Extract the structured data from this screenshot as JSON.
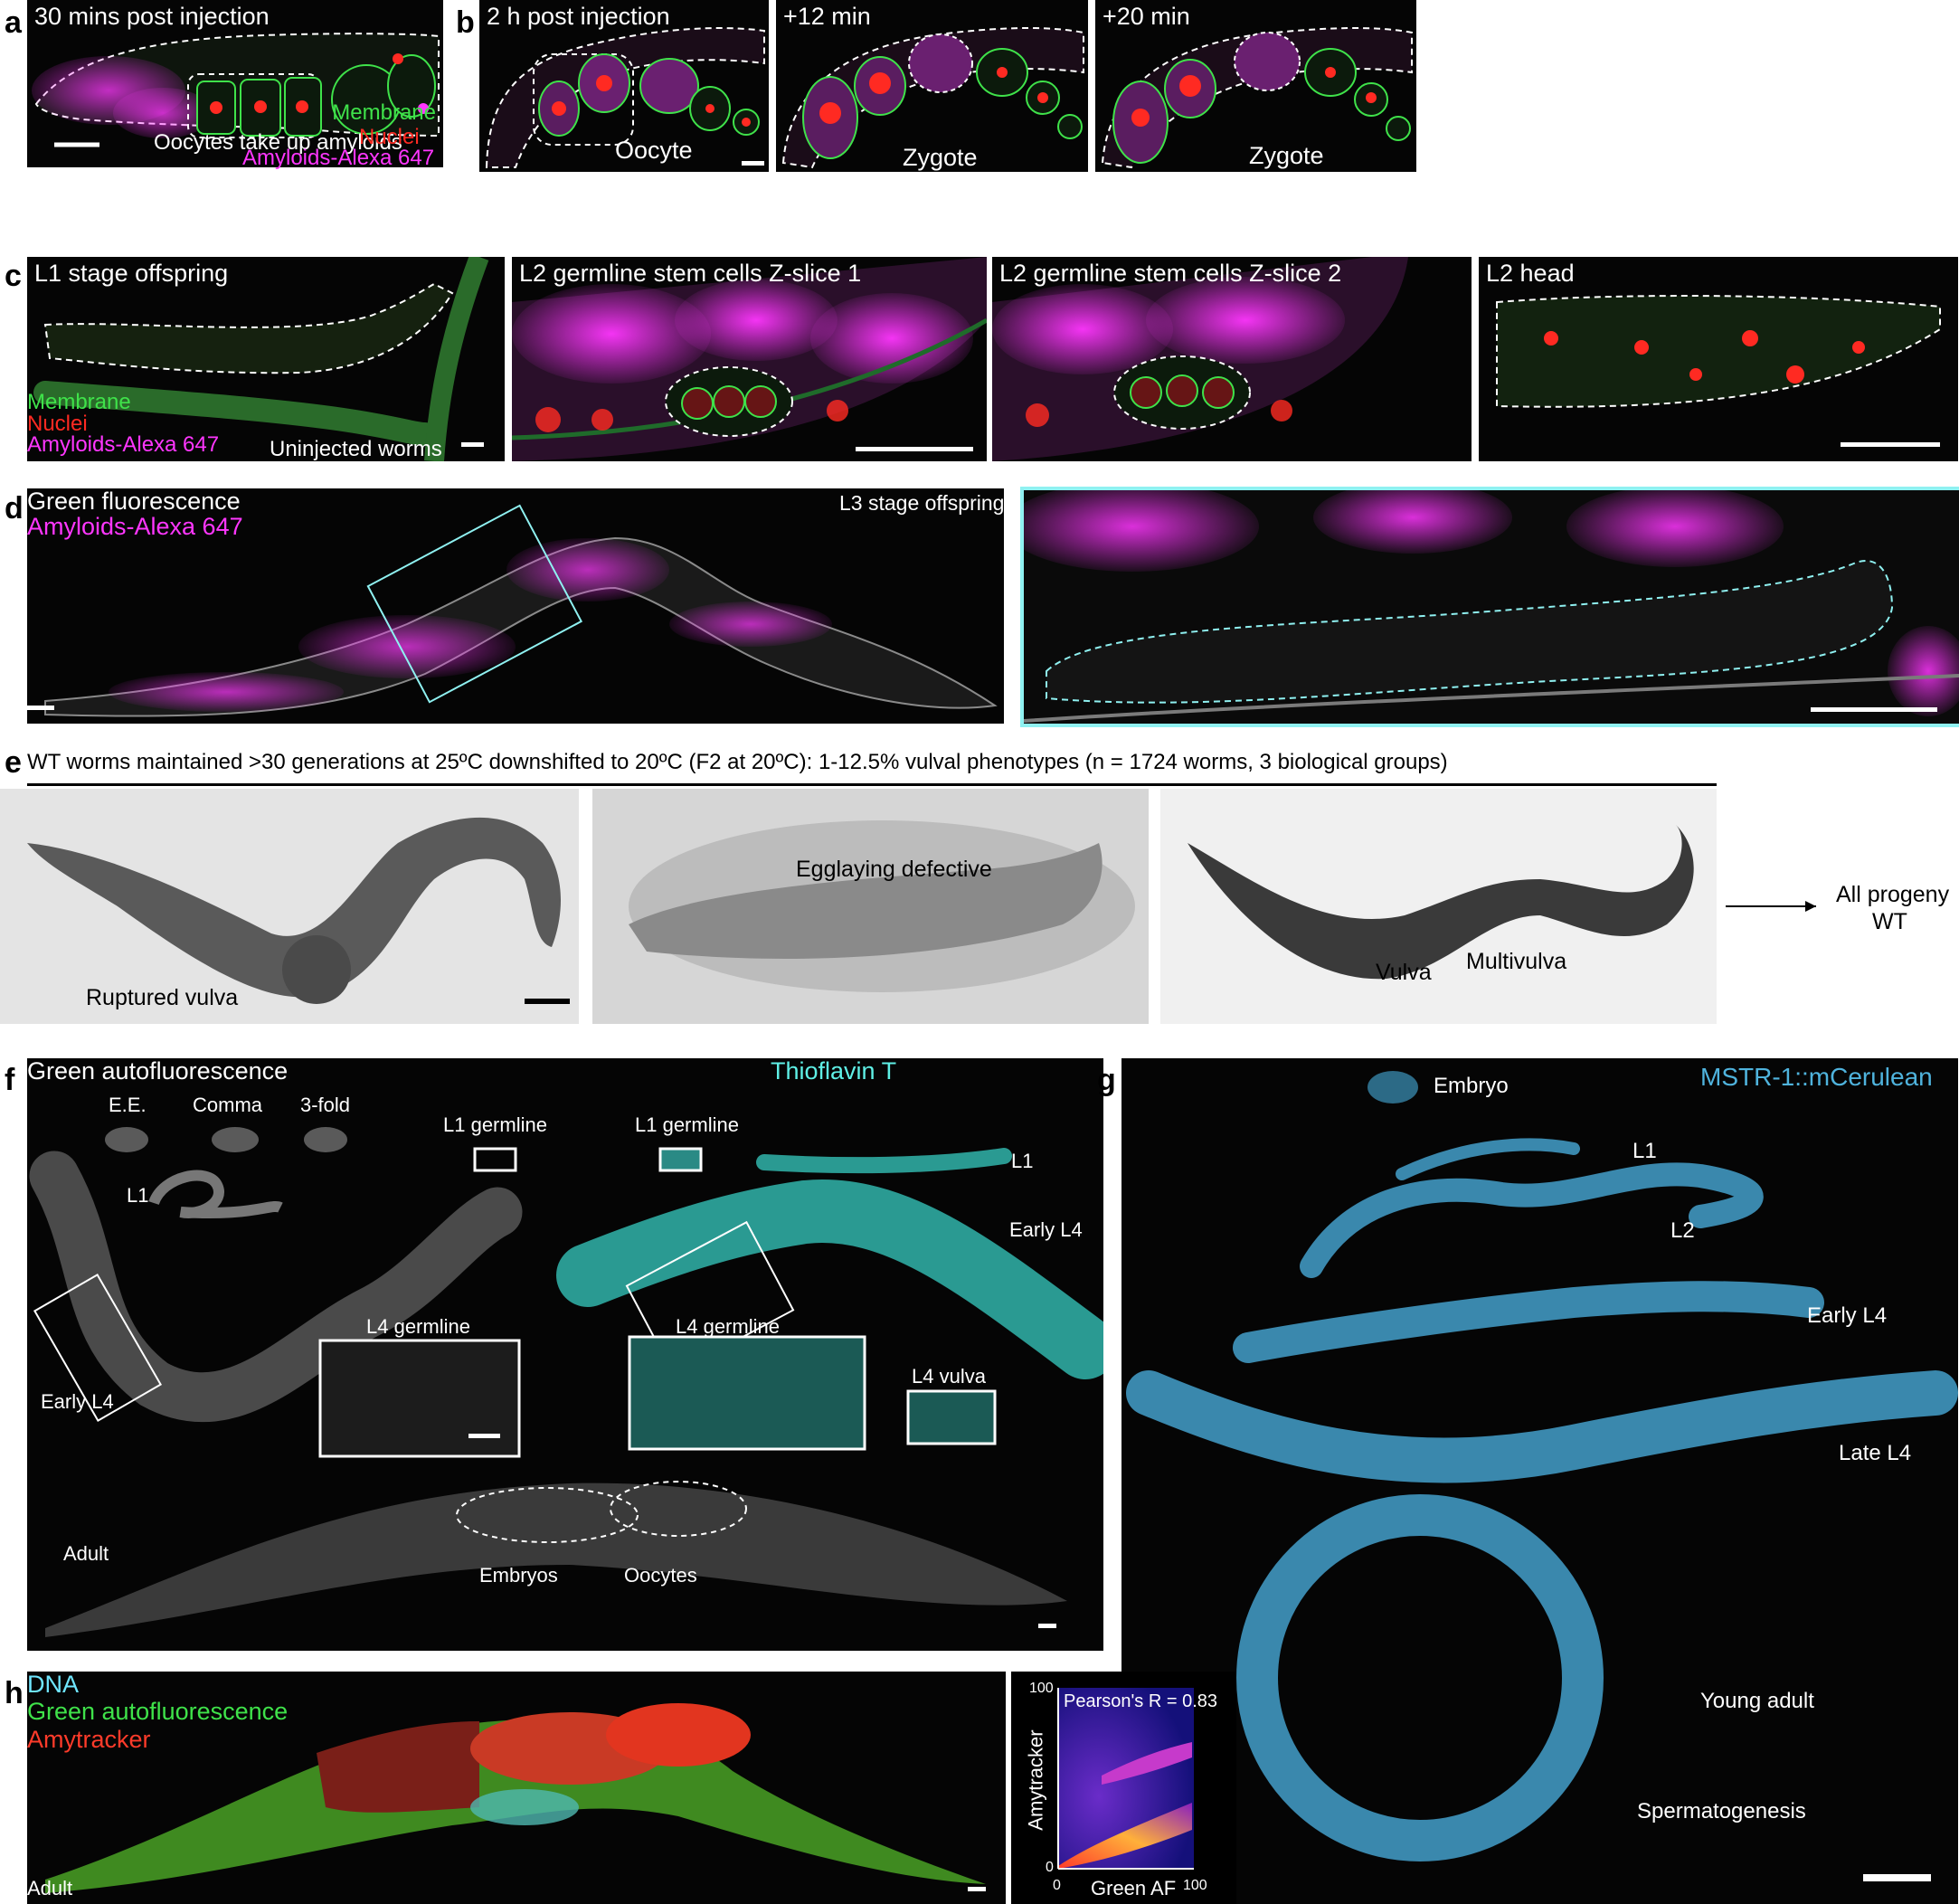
{
  "colors": {
    "membrane": "#3fe24a",
    "nuclei": "#ff2a22",
    "amyloid": "#ff36ff",
    "thioflavin": "#5ff0e6",
    "cerulean": "#4fb3dd",
    "amytracker": "#ff3b2a",
    "dna": "#6fe6ff",
    "inset_border": "#8ff1f1"
  },
  "panel_a": {
    "letter": "a",
    "title": "30 mins post injection",
    "annotation": "Oocytes take up amyloids",
    "legend": [
      "Membrane",
      "Nuclei",
      "Amyloids-Alexa 647"
    ]
  },
  "panel_b": {
    "letter": "b",
    "frames": [
      {
        "title": "2 h post injection",
        "annotation": "Oocyte"
      },
      {
        "title": "+12 min",
        "annotation": "Zygote"
      },
      {
        "title": "+20 min",
        "annotation": "Zygote"
      }
    ]
  },
  "panel_c": {
    "letter": "c",
    "frames": [
      {
        "title": "L1 stage offspring"
      },
      {
        "title": "L2 germline stem cells Z-slice 1"
      },
      {
        "title": "L2 germline stem cells Z-slice 2"
      },
      {
        "title": "L2 head"
      }
    ],
    "legend": [
      "Membrane",
      "Nuclei",
      "Amyloids-Alexa 647"
    ],
    "annotation": "Uninjected worms"
  },
  "panel_d": {
    "letter": "d",
    "legend": [
      "Green fluorescence",
      "Amyloids-Alexa 647"
    ],
    "stage": "L3 stage offspring"
  },
  "panel_e": {
    "letter": "e",
    "caption": "WT worms maintained >30 generations at 25ºC downshifted to 20ºC (F2 at 20ºC): 1-12.5% vulval phenotypes (n = 1724 worms, 3 biological groups)",
    "labels": [
      "Ruptured vulva",
      "Egglaying defective",
      "Vulva",
      "Multivulva"
    ],
    "outcome_line1": "All progeny",
    "outcome_line2": "WT"
  },
  "panel_f": {
    "letter": "f",
    "title_left": "Green autofluorescence",
    "title_right": "Thioflavin T",
    "embryo_stages": [
      "E.E.",
      "Comma",
      "3-fold"
    ],
    "labels": {
      "l1": "L1",
      "l1_germline_left": "L1 germline",
      "l1_germline_right": "L1 germline",
      "l1_right": "L1",
      "early_l4_right": "Early L4",
      "early_l4_left": "Early L4",
      "l4_germline_left": "L4 germline",
      "l4_germline_right": "L4 germline",
      "l4_vulva": "L4 vulva",
      "adult": "Adult",
      "embryos": "Embryos",
      "oocytes": "Oocytes"
    }
  },
  "panel_g": {
    "letter": "g",
    "title": "MSTR-1::mCerulean",
    "stages": [
      "Embryo",
      "L1",
      "L2",
      "Early L4",
      "Late L4",
      "Young adult",
      "Spermatogenesis"
    ]
  },
  "panel_h": {
    "letter": "h",
    "legend": [
      "DNA",
      "Green autofluorescence",
      "Amytracker"
    ],
    "stage": "Adult",
    "plot": {
      "annotation": "Pearson's R = 0.83",
      "xlabel": "Green AF",
      "ylabel": "Amytracker",
      "x_ticks": [
        "0",
        "100"
      ],
      "y_ticks": [
        "0",
        "100"
      ]
    }
  }
}
